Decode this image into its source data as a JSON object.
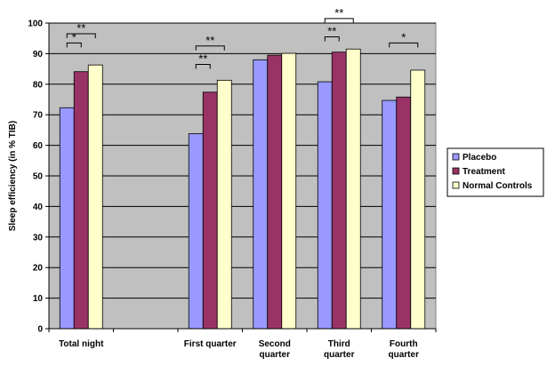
{
  "chart_data": {
    "type": "bar",
    "ylabel": "Sleep efficiency (in % TIB)",
    "ylim": [
      0,
      100
    ],
    "ytick_step": 10,
    "grid": true,
    "legend_position": "right",
    "categories": [
      "Total night",
      "",
      "First quarter",
      "Second quarter",
      "Third quarter",
      "Fourth quarter"
    ],
    "category_lines": [
      [
        "Total night"
      ],
      [],
      [
        "First quarter"
      ],
      [
        "Second",
        "quarter"
      ],
      [
        "Third",
        "quarter"
      ],
      [
        "Fourth",
        "quarter"
      ]
    ],
    "series": [
      {
        "name": "Placebo",
        "color": "#9999FF",
        "values": [
          72.3,
          null,
          63.8,
          88.0,
          80.8,
          74.7
        ]
      },
      {
        "name": "Treatment",
        "color": "#993366",
        "values": [
          84.1,
          null,
          77.4,
          89.5,
          90.5,
          75.8
        ]
      },
      {
        "name": "Normal Controls",
        "color": "#FFFFCC",
        "values": [
          86.3,
          null,
          81.3,
          90.1,
          91.5,
          84.6
        ]
      }
    ],
    "significance": [
      {
        "category": 0,
        "from": 0,
        "to": 1,
        "label": "*",
        "level": 93.5
      },
      {
        "category": 0,
        "from": 0,
        "to": 2,
        "label": "**",
        "level": 96.5
      },
      {
        "category": 2,
        "from": 0,
        "to": 1,
        "label": "**",
        "level": 86.5
      },
      {
        "category": 2,
        "from": 0,
        "to": 2,
        "label": "**",
        "level": 92.5
      },
      {
        "category": 4,
        "from": 0,
        "to": 1,
        "label": "**",
        "level": 95.5
      },
      {
        "category": 4,
        "from": 0,
        "to": 2,
        "label": "**",
        "level": 101.5
      },
      {
        "category": 5,
        "from": 0,
        "to": 2,
        "label": "*",
        "level": 93.5
      }
    ]
  }
}
